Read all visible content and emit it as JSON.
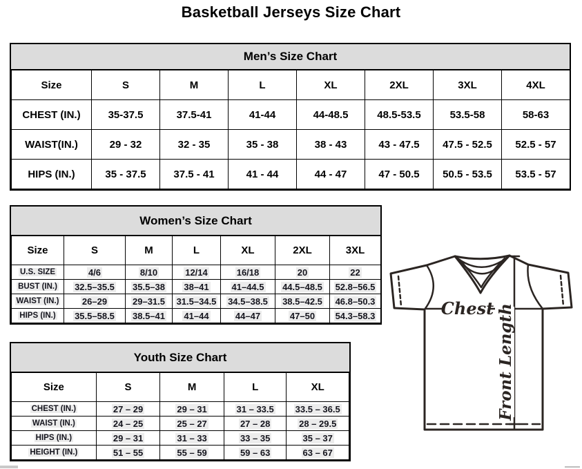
{
  "page_title": "Basketball Jerseys Size Chart",
  "mens_chart": {
    "title": "Men’s Size Chart",
    "columns": [
      "Size",
      "S",
      "M",
      "L",
      "XL",
      "2XL",
      "3XL",
      "4XL"
    ],
    "rows": [
      {
        "label": "CHEST (IN.)",
        "values": [
          "35-37.5",
          "37.5-41",
          "41-44",
          "44-48.5",
          "48.5-53.5",
          "53.5-58",
          "58-63"
        ]
      },
      {
        "label": "WAIST(IN.)",
        "values": [
          "29 - 32",
          "32 - 35",
          "35 - 38",
          "38 - 43",
          "43 - 47.5",
          "47.5 - 52.5",
          "52.5 - 57"
        ]
      },
      {
        "label": "HIPS (IN.)",
        "values": [
          "35 - 37.5",
          "37.5 - 41",
          "41 - 44",
          "44 - 47",
          "47 - 50.5",
          "50.5 - 53.5",
          "53.5 - 57"
        ]
      }
    ]
  },
  "womens_chart": {
    "title": "Women’s Size Chart",
    "columns": [
      "Size",
      "S",
      "M",
      "L",
      "XL",
      "2XL",
      "3XL"
    ],
    "rows": [
      {
        "label": "U.S. SIZE",
        "values": [
          "4/6",
          "8/10",
          "12/14",
          "16/18",
          "20",
          "22"
        ]
      },
      {
        "label": "BUST (IN.)",
        "values": [
          "32.5–35.5",
          "35.5–38",
          "38–41",
          "41–44.5",
          "44.5–48.5",
          "52.8–56.5"
        ]
      },
      {
        "label": "WAIST (IN.)",
        "values": [
          "26–29",
          "29–31.5",
          "31.5–34.5",
          "34.5–38.5",
          "38.5–42.5",
          "46.8–50.3"
        ]
      },
      {
        "label": "HIPS (IN.)",
        "values": [
          "35.5–58.5",
          "38.5–41",
          "41–44",
          "44–47",
          "47–50",
          "54.3–58.3"
        ]
      }
    ]
  },
  "youth_chart": {
    "title": "Youth Size Chart",
    "columns": [
      "Size",
      "S",
      "M",
      "L",
      "XL"
    ],
    "rows": [
      {
        "label": "CHEST (IN.)",
        "values": [
          "27 – 29",
          "29 – 31",
          "31 – 33.5",
          "33.5 – 36.5"
        ]
      },
      {
        "label": "WAIST (IN.)",
        "values": [
          "24 – 25",
          "25 – 27",
          "27 – 28",
          "28 – 29.5"
        ]
      },
      {
        "label": "HIPS (IN.)",
        "values": [
          "29 – 31",
          "31 – 33",
          "33 – 35",
          "35 – 37"
        ]
      },
      {
        "label": "HEIGHT (IN.)",
        "values": [
          "51 – 55",
          "55 – 59",
          "59 – 63",
          "63 – 67"
        ]
      }
    ]
  },
  "diagram": {
    "chest_label": "Chest",
    "front_length_label": "Front Length"
  },
  "colors": {
    "header_bg": "#dcdcdc",
    "table_border": "#000000",
    "diagram_stroke": "#2b2522",
    "value_highlight": "#ececec"
  }
}
